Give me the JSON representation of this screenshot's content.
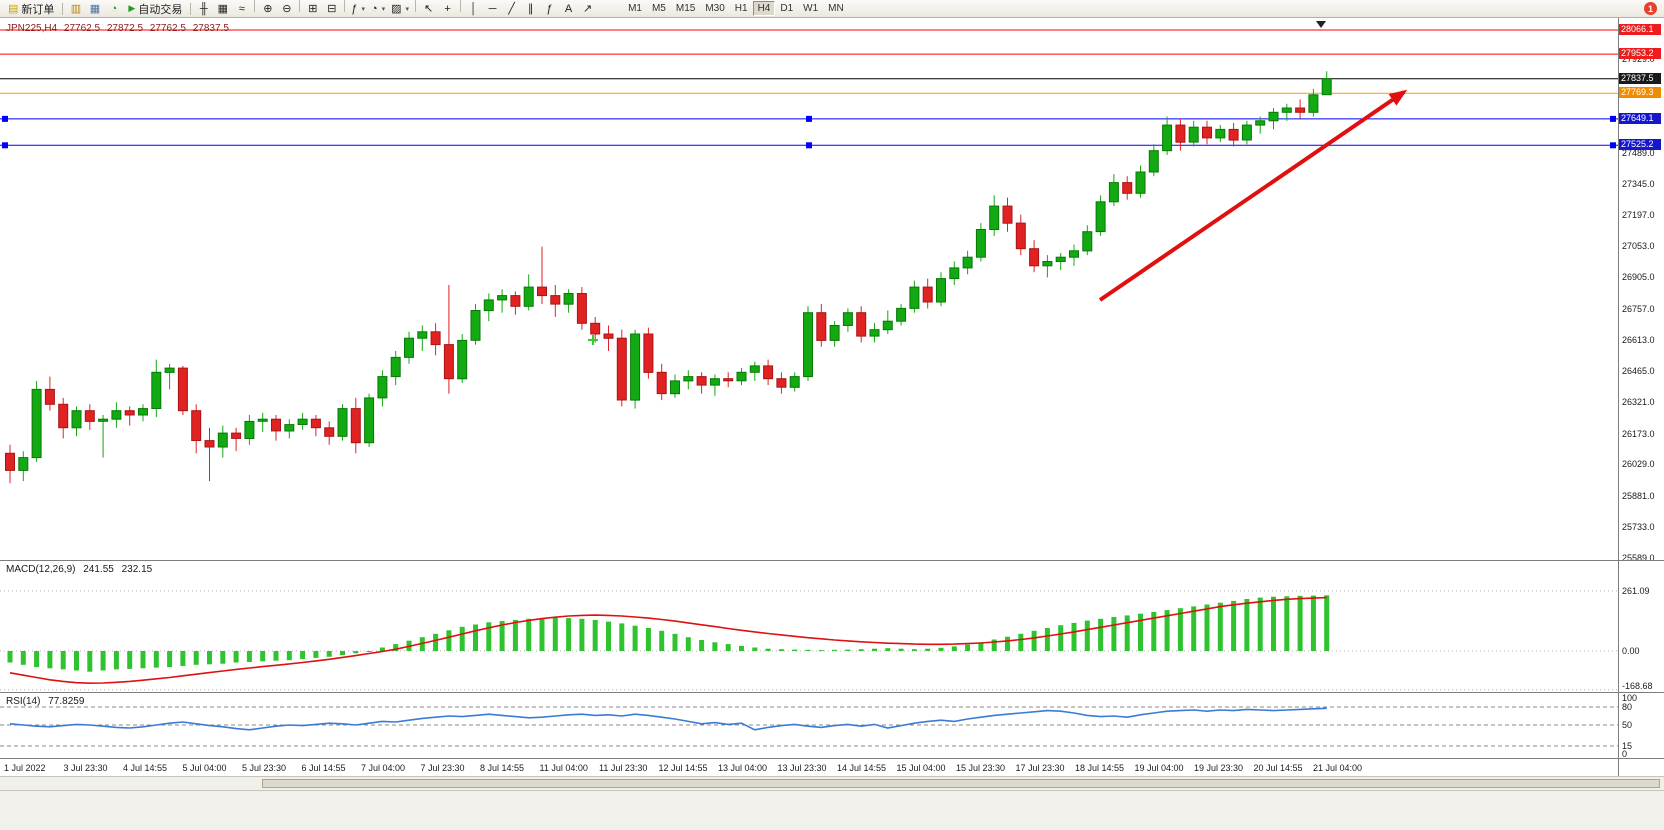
{
  "toolbar": {
    "new_order_label": "新订单",
    "autotrading_label": "自动交易",
    "icons_left": [
      {
        "name": "market-watch-icon",
        "glyph": "▥",
        "color": "#b8860b"
      },
      {
        "name": "data-window-icon",
        "glyph": "▦",
        "color": "#4a6fa5"
      },
      {
        "name": "strategy-tester-icon",
        "glyph": "◔",
        "color": "#2e8b2e"
      }
    ],
    "chart_tool_icons": [
      {
        "name": "bar-chart-icon",
        "glyph": "╫"
      },
      {
        "name": "candlestick-chart-icon",
        "glyph": "▦"
      },
      {
        "name": "line-chart-icon",
        "glyph": "≈"
      },
      {
        "sep": true
      },
      {
        "name": "zoom-in-icon",
        "glyph": "⊕"
      },
      {
        "name": "zoom-out-icon",
        "glyph": "⊖"
      },
      {
        "sep": true
      },
      {
        "name": "tile-windows-icon",
        "glyph": "⊞"
      },
      {
        "name": "auto-arrange-icon",
        "glyph": "⊟"
      },
      {
        "sep": true
      },
      {
        "name": "indicators-icon",
        "glyph": "ƒ",
        "dropdown": true
      },
      {
        "name": "periods-icon",
        "glyph": "◔",
        "dropdown": true
      },
      {
        "name": "templates-icon",
        "glyph": "▨",
        "dropdown": true
      },
      {
        "sep": true
      },
      {
        "name": "cursor-icon",
        "glyph": "↖"
      },
      {
        "name": "crosshair-icon",
        "glyph": "+"
      },
      {
        "sep": true
      },
      {
        "name": "vertical-line-icon",
        "glyph": "│"
      },
      {
        "name": "horizontal-line-icon",
        "glyph": "─"
      },
      {
        "name": "trendline-icon",
        "glyph": "╱"
      },
      {
        "name": "equidistant-channel-icon",
        "glyph": "∥"
      },
      {
        "name": "fibonacci-icon",
        "glyph": "ƒ"
      },
      {
        "name": "text-label-icon",
        "glyph": "A"
      },
      {
        "name": "arrows-icon",
        "glyph": "↗"
      }
    ],
    "timeframes": [
      "M1",
      "M5",
      "M15",
      "M30",
      "H1",
      "H4",
      "D1",
      "W1",
      "MN"
    ],
    "active_timeframe": "H4",
    "notification_badge": "1"
  },
  "chart_header": {
    "symbol": "JPN225,H4",
    "open": "27762.5",
    "high": "27872.5",
    "low": "27762.5",
    "close": "27837.5"
  },
  "price_axis": {
    "badges": [
      {
        "p": 28066.1,
        "t": "28066.1",
        "bg": "#ee1c1c",
        "line": "#ff0000",
        "name": "resistance-line-upper",
        "handles": false
      },
      {
        "p": 27953.2,
        "t": "27953.2",
        "bg": "#ee1c1c",
        "line": "#ff0000",
        "name": "resistance-line-lower",
        "handles": false
      },
      {
        "p": 27837.5,
        "t": "27837.5",
        "bg": "#1a1a1a",
        "line": "#000000",
        "name": "current-price-line",
        "handles": false
      },
      {
        "p": 27769.3,
        "t": "27769.3",
        "bg": "#f08c00",
        "line": "#ff9900",
        "name": "pivot-line-orange",
        "handles": false
      },
      {
        "p": 27649.1,
        "t": "27649.1",
        "bg": "#1616cc",
        "line": "#0000ff",
        "name": "support-line-upper",
        "handles": true
      },
      {
        "p": 27525.2,
        "t": "27525.2",
        "bg": "#1616cc",
        "line": "#0000ff",
        "name": "support-line-lower",
        "handles": true
      }
    ],
    "plain_labels": [
      {
        "p": 27929.0,
        "t": "27929.0"
      },
      {
        "p": 27489.0,
        "t": "27489.0"
      },
      {
        "p": 27345.0,
        "t": "27345.0"
      },
      {
        "p": 27197.0,
        "t": "27197.0"
      },
      {
        "p": 27053.0,
        "t": "27053.0"
      },
      {
        "p": 26905.0,
        "t": "26905.0"
      },
      {
        "p": 26757.0,
        "t": "26757.0"
      },
      {
        "p": 26613.0,
        "t": "26613.0"
      },
      {
        "p": 26465.0,
        "t": "26465.0"
      },
      {
        "p": 26321.0,
        "t": "26321.0"
      },
      {
        "p": 26173.0,
        "t": "26173.0"
      },
      {
        "p": 26029.0,
        "t": "26029.0"
      },
      {
        "p": 25881.0,
        "t": "25881.0"
      },
      {
        "p": 25733.0,
        "t": "25733.0"
      },
      {
        "p": 25589.0,
        "t": "25589.0"
      }
    ]
  },
  "chart_data": {
    "type": "candlestick",
    "symbol": "JPN225",
    "timeframe": "H4",
    "y_range": {
      "max": 28066.1,
      "min": 25589.0
    },
    "last_ohlc": {
      "open": 27762.5,
      "high": 27872.5,
      "low": 27762.5,
      "close": 27837.5
    },
    "candles": [
      [
        26080,
        26120,
        25940,
        26000
      ],
      [
        26000,
        26090,
        25950,
        26060
      ],
      [
        26060,
        26420,
        26040,
        26380
      ],
      [
        26380,
        26440,
        26280,
        26310
      ],
      [
        26310,
        26340,
        26150,
        26200
      ],
      [
        26200,
        26300,
        26160,
        26280
      ],
      [
        26280,
        26310,
        26190,
        26230
      ],
      [
        26230,
        26260,
        26060,
        26240
      ],
      [
        26240,
        26320,
        26200,
        26280
      ],
      [
        26280,
        26300,
        26210,
        26260
      ],
      [
        26260,
        26310,
        26230,
        26290
      ],
      [
        26290,
        26520,
        26250,
        26460
      ],
      [
        26460,
        26500,
        26380,
        26480
      ],
      [
        26480,
        26490,
        26260,
        26280
      ],
      [
        26280,
        26310,
        26080,
        26140
      ],
      [
        26140,
        26200,
        25950,
        26110
      ],
      [
        26110,
        26210,
        26060,
        26175
      ],
      [
        26175,
        26200,
        26090,
        26150
      ],
      [
        26150,
        26260,
        26120,
        26230
      ],
      [
        26230,
        26270,
        26180,
        26240
      ],
      [
        26240,
        26260,
        26140,
        26185
      ],
      [
        26185,
        26240,
        26150,
        26215
      ],
      [
        26215,
        26270,
        26190,
        26240
      ],
      [
        26240,
        26260,
        26160,
        26200
      ],
      [
        26200,
        26230,
        26120,
        26160
      ],
      [
        26160,
        26310,
        26140,
        26290
      ],
      [
        26290,
        26340,
        26080,
        26130
      ],
      [
        26130,
        26360,
        26110,
        26340
      ],
      [
        26340,
        26470,
        26300,
        26440
      ],
      [
        26440,
        26560,
        26400,
        26530
      ],
      [
        26530,
        26650,
        26500,
        26620
      ],
      [
        26620,
        26680,
        26560,
        26650
      ],
      [
        26650,
        26690,
        26540,
        26590
      ],
      [
        26590,
        26870,
        26360,
        26430
      ],
      [
        26430,
        26640,
        26410,
        26610
      ],
      [
        26610,
        26780,
        26590,
        26750
      ],
      [
        26750,
        26830,
        26700,
        26800
      ],
      [
        26800,
        26850,
        26740,
        26820
      ],
      [
        26820,
        26840,
        26730,
        26770
      ],
      [
        26770,
        26920,
        26750,
        26860
      ],
      [
        26860,
        27050,
        26780,
        26820
      ],
      [
        26820,
        26870,
        26720,
        26780
      ],
      [
        26780,
        26850,
        26740,
        26830
      ],
      [
        26830,
        26860,
        26660,
        26690
      ],
      [
        26690,
        26720,
        26600,
        26640
      ],
      [
        26640,
        26680,
        26560,
        26620
      ],
      [
        26620,
        26660,
        26300,
        26330
      ],
      [
        26330,
        26660,
        26290,
        26640
      ],
      [
        26640,
        26670,
        26430,
        26460
      ],
      [
        26460,
        26500,
        26330,
        26360
      ],
      [
        26360,
        26450,
        26340,
        26420
      ],
      [
        26420,
        26470,
        26380,
        26440
      ],
      [
        26440,
        26460,
        26360,
        26400
      ],
      [
        26400,
        26450,
        26350,
        26430
      ],
      [
        26430,
        26460,
        26390,
        26420
      ],
      [
        26420,
        26480,
        26400,
        26460
      ],
      [
        26460,
        26510,
        26420,
        26490
      ],
      [
        26490,
        26520,
        26400,
        26430
      ],
      [
        26430,
        26460,
        26360,
        26390
      ],
      [
        26390,
        26460,
        26370,
        26440
      ],
      [
        26440,
        26770,
        26420,
        26740
      ],
      [
        26740,
        26780,
        26580,
        26610
      ],
      [
        26610,
        26700,
        26580,
        26680
      ],
      [
        26680,
        26760,
        26650,
        26740
      ],
      [
        26740,
        26770,
        26600,
        26630
      ],
      [
        26630,
        26690,
        26600,
        26660
      ],
      [
        26660,
        26750,
        26640,
        26700
      ],
      [
        26700,
        26780,
        26680,
        26760
      ],
      [
        26760,
        26890,
        26740,
        26860
      ],
      [
        26860,
        26900,
        26760,
        26790
      ],
      [
        26790,
        26930,
        26770,
        26900
      ],
      [
        26900,
        26980,
        26870,
        26950
      ],
      [
        26950,
        27030,
        26920,
        27000
      ],
      [
        27000,
        27160,
        26980,
        27130
      ],
      [
        27130,
        27290,
        27100,
        27240
      ],
      [
        27240,
        27280,
        27120,
        27160
      ],
      [
        27160,
        27200,
        27010,
        27040
      ],
      [
        27040,
        27080,
        26930,
        26960
      ],
      [
        26960,
        27010,
        26905,
        26980
      ],
      [
        26980,
        27020,
        26940,
        27000
      ],
      [
        27000,
        27060,
        26960,
        27030
      ],
      [
        27030,
        27150,
        27010,
        27120
      ],
      [
        27120,
        27290,
        27100,
        27260
      ],
      [
        27260,
        27390,
        27240,
        27350
      ],
      [
        27350,
        27380,
        27270,
        27300
      ],
      [
        27300,
        27430,
        27280,
        27400
      ],
      [
        27400,
        27530,
        27380,
        27500
      ],
      [
        27500,
        27660,
        27480,
        27620
      ],
      [
        27620,
        27650,
        27500,
        27540
      ],
      [
        27540,
        27640,
        27520,
        27610
      ],
      [
        27610,
        27640,
        27530,
        27560
      ],
      [
        27560,
        27620,
        27540,
        27600
      ],
      [
        27600,
        27630,
        27520,
        27550
      ],
      [
        27550,
        27640,
        27530,
        27620
      ],
      [
        27620,
        27660,
        27580,
        27640
      ],
      [
        27640,
        27700,
        27600,
        27680
      ],
      [
        27680,
        27720,
        27640,
        27700
      ],
      [
        27700,
        27740,
        27650,
        27680
      ],
      [
        27680,
        27790,
        27660,
        27762
      ],
      [
        27762.5,
        27872.5,
        27762.5,
        27837.5
      ]
    ],
    "time_labels": [
      "1 Jul 2022",
      "3 Jul 23:30",
      "4 Jul 14:55",
      "5 Jul 04:00",
      "5 Jul 23:30",
      "6 Jul 14:55",
      "7 Jul 04:00",
      "7 Jul 23:30",
      "8 Jul 14:55",
      "11 Jul 04:00",
      "11 Jul 23:30",
      "12 Jul 14:55",
      "13 Jul 04:00",
      "13 Jul 23:30",
      "14 Jul 14:55",
      "15 Jul 04:00",
      "15 Jul 23:30",
      "17 Jul 23:30",
      "18 Jul 14:55",
      "19 Jul 04:00",
      "19 Jul 23:30",
      "20 Jul 14:55",
      "21 Jul 04:00"
    ],
    "annotations": [
      {
        "type": "trend-arrow-up",
        "color": "#e01010"
      },
      {
        "type": "plus-marker",
        "color": "#32cd32"
      },
      {
        "type": "current-bar-marker",
        "color": "#222222"
      }
    ],
    "indicators": {
      "macd": {
        "name": "MACD(12,26,9)",
        "main_value": "241.55",
        "signal_value": "232.15",
        "axis_labels": [
          {
            "v": 261.09,
            "t": "261.09"
          },
          {
            "v": 0,
            "t": "0.00"
          },
          {
            "v": -168.68,
            "t": "-168.68"
          }
        ],
        "histogram": [
          -50,
          -60,
          -70,
          -75,
          -80,
          -85,
          -90,
          -85,
          -80,
          -78,
          -75,
          -72,
          -70,
          -65,
          -60,
          -58,
          -55,
          -50,
          -48,
          -45,
          -42,
          -40,
          -35,
          -30,
          -25,
          -18,
          -10,
          0,
          15,
          30,
          45,
          60,
          75,
          90,
          105,
          115,
          125,
          130,
          135,
          140,
          142,
          145,
          143,
          140,
          135,
          128,
          120,
          110,
          100,
          88,
          75,
          60,
          48,
          38,
          30,
          22,
          15,
          10,
          8,
          6,
          5,
          4,
          5,
          6,
          8,
          10,
          12,
          10,
          8,
          10,
          14,
          20,
          28,
          38,
          50,
          62,
          75,
          88,
          100,
          112,
          122,
          132,
          140,
          148,
          155,
          162,
          170,
          178,
          186,
          194,
          202,
          210,
          218,
          226,
          232,
          236,
          238,
          240,
          241,
          242
        ],
        "signal": [
          -95,
          -105,
          -115,
          -125,
          -132,
          -138,
          -140,
          -139,
          -136,
          -132,
          -127,
          -121,
          -115,
          -108,
          -101,
          -94,
          -87,
          -80,
          -74,
          -68,
          -62,
          -56,
          -50,
          -43,
          -36,
          -28,
          -20,
          -11,
          -2,
          8,
          20,
          33,
          46,
          60,
          74,
          88,
          101,
          113,
          124,
          133,
          141,
          147,
          152,
          155,
          156,
          155,
          152,
          148,
          143,
          137,
          130,
          122,
          114,
          106,
          98,
          90,
          83,
          76,
          70,
          64,
          58,
          53,
          48,
          44,
          40,
          37,
          34,
          32,
          30,
          29,
          29,
          30,
          32,
          35,
          39,
          44,
          50,
          57,
          65,
          74,
          83,
          93,
          103,
          113,
          123,
          133,
          143,
          153,
          163,
          173,
          183,
          193,
          201,
          208,
          214,
          220,
          225,
          228,
          230,
          232
        ]
      },
      "rsi": {
        "name": "RSI(14)",
        "value": "77.8259",
        "axis_labels": [
          {
            "v": 100,
            "t": "100"
          },
          {
            "v": 80,
            "t": "80"
          },
          {
            "v": 50,
            "t": "50"
          },
          {
            "v": 15,
            "t": "15"
          },
          {
            "v": 0,
            "t": "0"
          }
        ],
        "levels": [
          80,
          50,
          15
        ],
        "values": [
          52,
          50,
          48,
          47,
          49,
          51,
          50,
          48,
          46,
          45,
          47,
          50,
          53,
          55,
          52,
          49,
          47,
          44,
          42,
          45,
          48,
          50,
          49,
          51,
          53,
          52,
          50,
          53,
          56,
          55,
          58,
          61,
          63,
          65,
          64,
          66,
          68,
          66,
          64,
          62,
          63,
          65,
          67,
          68,
          66,
          67,
          65,
          68,
          66,
          63,
          60,
          56,
          52,
          54,
          51,
          53,
          42,
          46,
          49,
          51,
          48,
          46,
          49,
          51,
          48,
          51,
          45,
          49,
          53,
          56,
          58,
          56,
          60,
          63,
          66,
          68,
          70,
          72,
          74,
          73,
          70,
          66,
          64,
          65,
          63,
          67,
          70,
          73,
          74,
          75,
          73,
          75,
          74,
          76,
          75,
          74,
          75,
          76,
          77,
          77.8
        ]
      }
    }
  }
}
